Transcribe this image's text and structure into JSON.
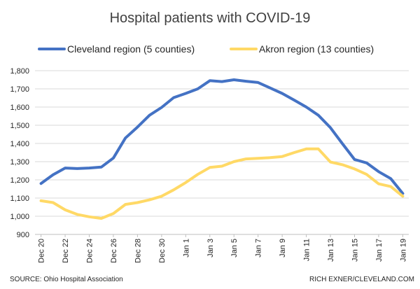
{
  "chart_data": {
    "type": "line",
    "title": "Hospital patients with COVID-19",
    "xlabel": "",
    "ylabel": "",
    "ylim": [
      900,
      1800
    ],
    "yticks": [
      "900",
      "1,000",
      "1,100",
      "1,200",
      "1,300",
      "1,400",
      "1,500",
      "1,600",
      "1,700",
      "1,800"
    ],
    "ytick_values": [
      900,
      1000,
      1100,
      1200,
      1300,
      1400,
      1500,
      1600,
      1700,
      1800
    ],
    "x": [
      "Dec 20",
      "Dec 21",
      "Dec 22",
      "Dec 23",
      "Dec 24",
      "Dec 25",
      "Dec 26",
      "Dec 27",
      "Dec 28",
      "Dec 29",
      "Dec 30",
      "Dec 31",
      "Jan 1",
      "Jan 2",
      "Jan 3",
      "Jan 4",
      "Jan 5",
      "Jan 6",
      "Jan 7",
      "Jan 8",
      "Jan 9",
      "Jan 10",
      "Jan 11",
      "Jan 12",
      "Jan 13",
      "Jan 14",
      "Jan 15",
      "Jan 16",
      "Jan 17",
      "Jan 18",
      "Jan 19"
    ],
    "xtick_labels": [
      "Dec 20",
      "Dec 22",
      "Dec 24",
      "Dec 26",
      "Dec 28",
      "Dec 30",
      "Jan 1",
      "Jan 3",
      "Jan 5",
      "Jan 7",
      "Jan 9",
      "Jan 11",
      "Jan 13",
      "Jan 15",
      "Jan 17",
      "Jan 19"
    ],
    "series": [
      {
        "name": "Cleveland region (5 counties)",
        "color": "#4472C4",
        "values": [
          1180,
          1228,
          1265,
          1262,
          1265,
          1270,
          1320,
          1430,
          1490,
          1555,
          1598,
          1652,
          1675,
          1700,
          1745,
          1740,
          1750,
          1742,
          1735,
          1705,
          1675,
          1638,
          1600,
          1555,
          1487,
          1398,
          1312,
          1293,
          1245,
          1207,
          1125
        ]
      },
      {
        "name": "Akron region (13 counties)",
        "color": "#FFD966",
        "values": [
          1085,
          1075,
          1035,
          1010,
          997,
          988,
          1015,
          1065,
          1075,
          1090,
          1110,
          1145,
          1185,
          1230,
          1268,
          1275,
          1300,
          1315,
          1318,
          1322,
          1328,
          1350,
          1370,
          1370,
          1298,
          1283,
          1260,
          1230,
          1178,
          1163,
          1110
        ]
      }
    ],
    "grid": true,
    "legend_position": "top"
  },
  "footer": {
    "source": "SOURCE: Ohio Hospital Association",
    "credit": "RICH EXNER/CLEVELAND.COM"
  }
}
